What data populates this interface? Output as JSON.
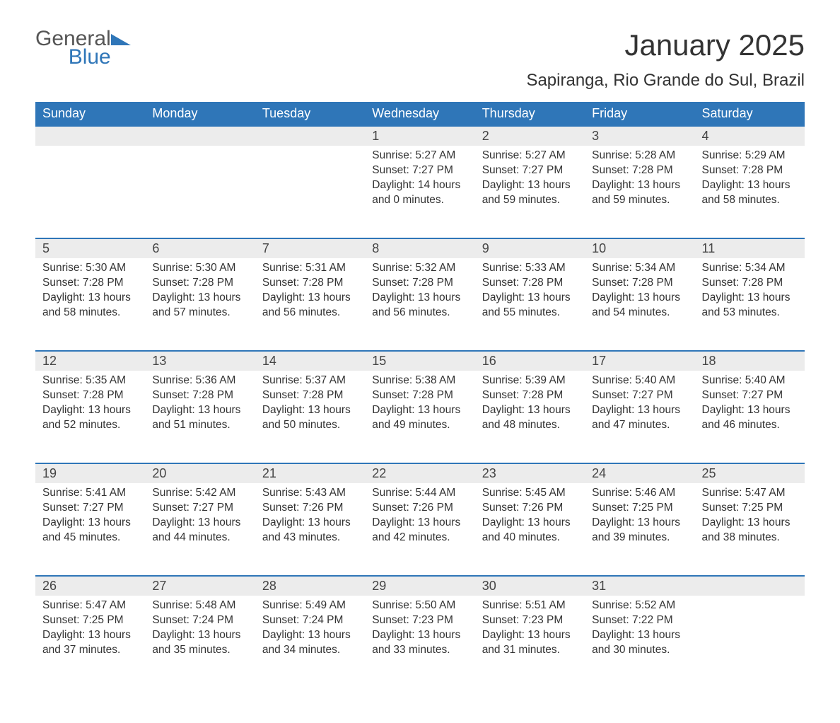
{
  "logo": {
    "line1": "General",
    "line2": "Blue"
  },
  "title": "January 2025",
  "location": "Sapiranga, Rio Grande do Sul, Brazil",
  "colors": {
    "header_bg": "#2f76b8",
    "header_text": "#ffffff",
    "daynum_bg": "#ececec",
    "divider": "#2f76b8",
    "body_text": "#333333",
    "page_bg": "#ffffff"
  },
  "typography": {
    "title_fontsize": 42,
    "location_fontsize": 24,
    "dayheader_fontsize": 18,
    "celltext_fontsize": 15.5
  },
  "day_headers": [
    "Sunday",
    "Monday",
    "Tuesday",
    "Wednesday",
    "Thursday",
    "Friday",
    "Saturday"
  ],
  "weeks": [
    [
      null,
      null,
      null,
      {
        "n": "1",
        "sunrise": "5:27 AM",
        "sunset": "7:27 PM",
        "daylight": "14 hours and 0 minutes."
      },
      {
        "n": "2",
        "sunrise": "5:27 AM",
        "sunset": "7:27 PM",
        "daylight": "13 hours and 59 minutes."
      },
      {
        "n": "3",
        "sunrise": "5:28 AM",
        "sunset": "7:28 PM",
        "daylight": "13 hours and 59 minutes."
      },
      {
        "n": "4",
        "sunrise": "5:29 AM",
        "sunset": "7:28 PM",
        "daylight": "13 hours and 58 minutes."
      }
    ],
    [
      {
        "n": "5",
        "sunrise": "5:30 AM",
        "sunset": "7:28 PM",
        "daylight": "13 hours and 58 minutes."
      },
      {
        "n": "6",
        "sunrise": "5:30 AM",
        "sunset": "7:28 PM",
        "daylight": "13 hours and 57 minutes."
      },
      {
        "n": "7",
        "sunrise": "5:31 AM",
        "sunset": "7:28 PM",
        "daylight": "13 hours and 56 minutes."
      },
      {
        "n": "8",
        "sunrise": "5:32 AM",
        "sunset": "7:28 PM",
        "daylight": "13 hours and 56 minutes."
      },
      {
        "n": "9",
        "sunrise": "5:33 AM",
        "sunset": "7:28 PM",
        "daylight": "13 hours and 55 minutes."
      },
      {
        "n": "10",
        "sunrise": "5:34 AM",
        "sunset": "7:28 PM",
        "daylight": "13 hours and 54 minutes."
      },
      {
        "n": "11",
        "sunrise": "5:34 AM",
        "sunset": "7:28 PM",
        "daylight": "13 hours and 53 minutes."
      }
    ],
    [
      {
        "n": "12",
        "sunrise": "5:35 AM",
        "sunset": "7:28 PM",
        "daylight": "13 hours and 52 minutes."
      },
      {
        "n": "13",
        "sunrise": "5:36 AM",
        "sunset": "7:28 PM",
        "daylight": "13 hours and 51 minutes."
      },
      {
        "n": "14",
        "sunrise": "5:37 AM",
        "sunset": "7:28 PM",
        "daylight": "13 hours and 50 minutes."
      },
      {
        "n": "15",
        "sunrise": "5:38 AM",
        "sunset": "7:28 PM",
        "daylight": "13 hours and 49 minutes."
      },
      {
        "n": "16",
        "sunrise": "5:39 AM",
        "sunset": "7:28 PM",
        "daylight": "13 hours and 48 minutes."
      },
      {
        "n": "17",
        "sunrise": "5:40 AM",
        "sunset": "7:27 PM",
        "daylight": "13 hours and 47 minutes."
      },
      {
        "n": "18",
        "sunrise": "5:40 AM",
        "sunset": "7:27 PM",
        "daylight": "13 hours and 46 minutes."
      }
    ],
    [
      {
        "n": "19",
        "sunrise": "5:41 AM",
        "sunset": "7:27 PM",
        "daylight": "13 hours and 45 minutes."
      },
      {
        "n": "20",
        "sunrise": "5:42 AM",
        "sunset": "7:27 PM",
        "daylight": "13 hours and 44 minutes."
      },
      {
        "n": "21",
        "sunrise": "5:43 AM",
        "sunset": "7:26 PM",
        "daylight": "13 hours and 43 minutes."
      },
      {
        "n": "22",
        "sunrise": "5:44 AM",
        "sunset": "7:26 PM",
        "daylight": "13 hours and 42 minutes."
      },
      {
        "n": "23",
        "sunrise": "5:45 AM",
        "sunset": "7:26 PM",
        "daylight": "13 hours and 40 minutes."
      },
      {
        "n": "24",
        "sunrise": "5:46 AM",
        "sunset": "7:25 PM",
        "daylight": "13 hours and 39 minutes."
      },
      {
        "n": "25",
        "sunrise": "5:47 AM",
        "sunset": "7:25 PM",
        "daylight": "13 hours and 38 minutes."
      }
    ],
    [
      {
        "n": "26",
        "sunrise": "5:47 AM",
        "sunset": "7:25 PM",
        "daylight": "13 hours and 37 minutes."
      },
      {
        "n": "27",
        "sunrise": "5:48 AM",
        "sunset": "7:24 PM",
        "daylight": "13 hours and 35 minutes."
      },
      {
        "n": "28",
        "sunrise": "5:49 AM",
        "sunset": "7:24 PM",
        "daylight": "13 hours and 34 minutes."
      },
      {
        "n": "29",
        "sunrise": "5:50 AM",
        "sunset": "7:23 PM",
        "daylight": "13 hours and 33 minutes."
      },
      {
        "n": "30",
        "sunrise": "5:51 AM",
        "sunset": "7:23 PM",
        "daylight": "13 hours and 31 minutes."
      },
      {
        "n": "31",
        "sunrise": "5:52 AM",
        "sunset": "7:22 PM",
        "daylight": "13 hours and 30 minutes."
      },
      null
    ]
  ],
  "labels": {
    "sunrise": "Sunrise:",
    "sunset": "Sunset:",
    "daylight": "Daylight:"
  }
}
